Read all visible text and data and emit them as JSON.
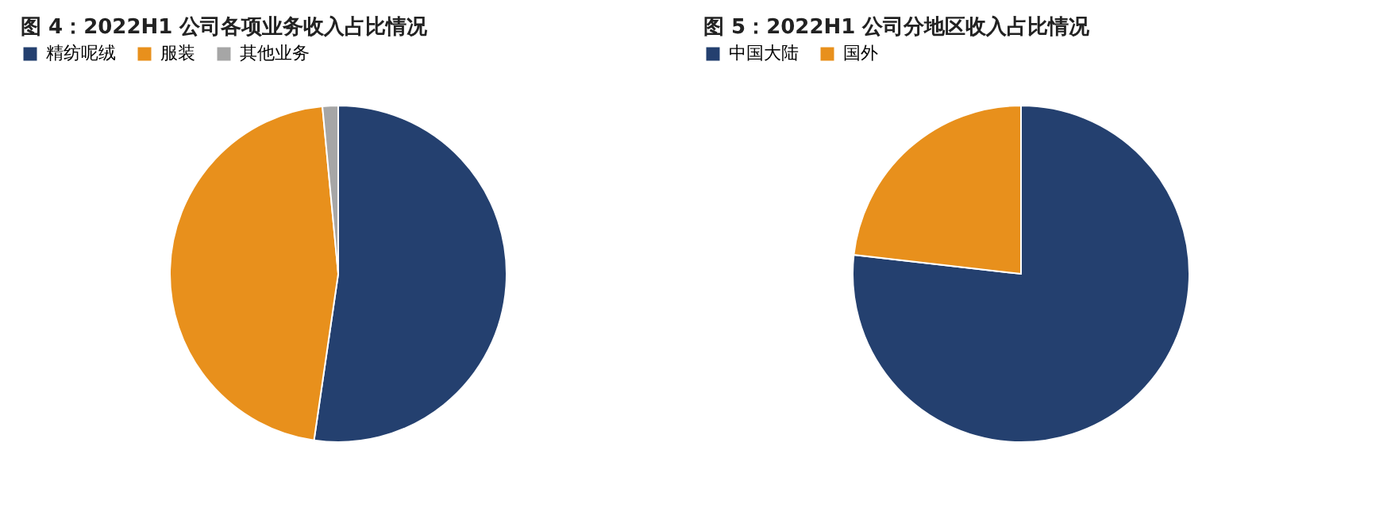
{
  "chart_data": [
    {
      "type": "pie",
      "title": "图 4：2022H1 公司各项业务收入占比情况",
      "categories": [
        "精纺呢绒",
        "服装",
        "其他业务"
      ],
      "values": [
        52.3,
        46.2,
        1.5
      ],
      "colors": [
        "#24406f",
        "#e8901c",
        "#a6a6a6"
      ],
      "legend": "top"
    },
    {
      "type": "pie",
      "title": "图 5：2022H1 公司分地区收入占比情况",
      "categories": [
        "中国大陆",
        "国外"
      ],
      "values": [
        76.8,
        23.2
      ],
      "colors": [
        "#24406f",
        "#e8901c"
      ],
      "legend": "top"
    }
  ]
}
